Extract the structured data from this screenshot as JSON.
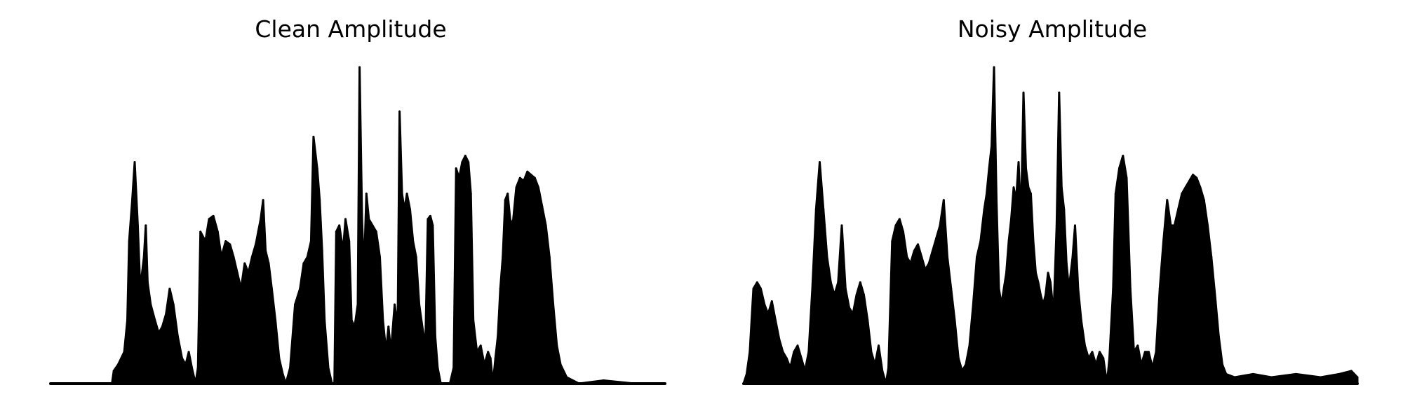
{
  "chart_data": [
    {
      "type": "area",
      "title": "Clean Amplitude",
      "xlabel": "",
      "ylabel": "",
      "axes_visible": false,
      "ylim": [
        0,
        1.0
      ],
      "color": "#000000",
      "points": [
        [
          0.0,
          0.0
        ],
        [
          0.1,
          0.0
        ],
        [
          0.103,
          0.04
        ],
        [
          0.11,
          0.06
        ],
        [
          0.12,
          0.1
        ],
        [
          0.125,
          0.2
        ],
        [
          0.128,
          0.45
        ],
        [
          0.133,
          0.58
        ],
        [
          0.137,
          0.7
        ],
        [
          0.142,
          0.5
        ],
        [
          0.146,
          0.3
        ],
        [
          0.152,
          0.4
        ],
        [
          0.155,
          0.5
        ],
        [
          0.158,
          0.32
        ],
        [
          0.163,
          0.25
        ],
        [
          0.17,
          0.2
        ],
        [
          0.176,
          0.16
        ],
        [
          0.182,
          0.18
        ],
        [
          0.188,
          0.22
        ],
        [
          0.194,
          0.3
        ],
        [
          0.2,
          0.25
        ],
        [
          0.207,
          0.15
        ],
        [
          0.214,
          0.08
        ],
        [
          0.22,
          0.06
        ],
        [
          0.225,
          0.1
        ],
        [
          0.23,
          0.05
        ],
        [
          0.236,
          0.0
        ],
        [
          0.24,
          0.05
        ],
        [
          0.244,
          0.48
        ],
        [
          0.252,
          0.45
        ],
        [
          0.258,
          0.52
        ],
        [
          0.265,
          0.53
        ],
        [
          0.272,
          0.48
        ],
        [
          0.278,
          0.4
        ],
        [
          0.285,
          0.45
        ],
        [
          0.292,
          0.44
        ],
        [
          0.298,
          0.4
        ],
        [
          0.304,
          0.35
        ],
        [
          0.31,
          0.3
        ],
        [
          0.316,
          0.38
        ],
        [
          0.322,
          0.35
        ],
        [
          0.328,
          0.4
        ],
        [
          0.334,
          0.44
        ],
        [
          0.338,
          0.48
        ],
        [
          0.342,
          0.52
        ],
        [
          0.346,
          0.58
        ],
        [
          0.35,
          0.42
        ],
        [
          0.355,
          0.38
        ],
        [
          0.36,
          0.3
        ],
        [
          0.366,
          0.2
        ],
        [
          0.372,
          0.08
        ],
        [
          0.378,
          0.03
        ],
        [
          0.383,
          0.0
        ],
        [
          0.39,
          0.05
        ],
        [
          0.398,
          0.25
        ],
        [
          0.406,
          0.3
        ],
        [
          0.412,
          0.38
        ],
        [
          0.418,
          0.4
        ],
        [
          0.424,
          0.45
        ],
        [
          0.428,
          0.78
        ],
        [
          0.434,
          0.68
        ],
        [
          0.438,
          0.58
        ],
        [
          0.442,
          0.42
        ],
        [
          0.446,
          0.2
        ],
        [
          0.452,
          0.05
        ],
        [
          0.458,
          0.0
        ],
        [
          0.462,
          0.0
        ],
        [
          0.465,
          0.48
        ],
        [
          0.47,
          0.5
        ],
        [
          0.476,
          0.42
        ],
        [
          0.48,
          0.52
        ],
        [
          0.486,
          0.45
        ],
        [
          0.49,
          0.2
        ],
        [
          0.495,
          0.18
        ],
        [
          0.5,
          0.25
        ],
        [
          0.503,
          1.0
        ],
        [
          0.507,
          0.52
        ],
        [
          0.51,
          0.35
        ],
        [
          0.514,
          0.6
        ],
        [
          0.518,
          0.52
        ],
        [
          0.524,
          0.5
        ],
        [
          0.53,
          0.48
        ],
        [
          0.536,
          0.4
        ],
        [
          0.541,
          0.2
        ],
        [
          0.546,
          0.1
        ],
        [
          0.55,
          0.18
        ],
        [
          0.554,
          0.1
        ],
        [
          0.56,
          0.25
        ],
        [
          0.565,
          0.18
        ],
        [
          0.568,
          0.86
        ],
        [
          0.572,
          0.6
        ],
        [
          0.576,
          0.55
        ],
        [
          0.58,
          0.6
        ],
        [
          0.585,
          0.55
        ],
        [
          0.59,
          0.45
        ],
        [
          0.595,
          0.4
        ],
        [
          0.6,
          0.25
        ],
        [
          0.605,
          0.18
        ],
        [
          0.61,
          0.12
        ],
        [
          0.614,
          0.52
        ],
        [
          0.618,
          0.53
        ],
        [
          0.622,
          0.5
        ],
        [
          0.626,
          0.15
        ],
        [
          0.63,
          0.05
        ],
        [
          0.635,
          0.0
        ],
        [
          0.65,
          0.0
        ],
        [
          0.656,
          0.05
        ],
        [
          0.66,
          0.68
        ],
        [
          0.665,
          0.65
        ],
        [
          0.67,
          0.7
        ],
        [
          0.675,
          0.72
        ],
        [
          0.68,
          0.7
        ],
        [
          0.684,
          0.6
        ],
        [
          0.688,
          0.2
        ],
        [
          0.694,
          0.1
        ],
        [
          0.7,
          0.12
        ],
        [
          0.706,
          0.06
        ],
        [
          0.712,
          0.1
        ],
        [
          0.716,
          0.08
        ],
        [
          0.72,
          0.0
        ],
        [
          0.724,
          0.08
        ],
        [
          0.728,
          0.15
        ],
        [
          0.732,
          0.3
        ],
        [
          0.736,
          0.4
        ],
        [
          0.74,
          0.58
        ],
        [
          0.744,
          0.6
        ],
        [
          0.748,
          0.52
        ],
        [
          0.752,
          0.5
        ],
        [
          0.758,
          0.62
        ],
        [
          0.764,
          0.65
        ],
        [
          0.77,
          0.64
        ],
        [
          0.776,
          0.67
        ],
        [
          0.782,
          0.66
        ],
        [
          0.788,
          0.65
        ],
        [
          0.794,
          0.62
        ],
        [
          0.8,
          0.56
        ],
        [
          0.806,
          0.5
        ],
        [
          0.812,
          0.4
        ],
        [
          0.818,
          0.25
        ],
        [
          0.824,
          0.12
        ],
        [
          0.83,
          0.06
        ],
        [
          0.84,
          0.02
        ],
        [
          0.86,
          0.0
        ],
        [
          0.9,
          0.01
        ],
        [
          0.95,
          0.0
        ],
        [
          1.0,
          0.0
        ]
      ]
    },
    {
      "type": "area",
      "title": "Noisy Amplitude",
      "xlabel": "",
      "ylabel": "",
      "axes_visible": false,
      "ylim": [
        0,
        1.0
      ],
      "color": "#000000",
      "points": [
        [
          0.0,
          0.0
        ],
        [
          0.005,
          0.03
        ],
        [
          0.01,
          0.1
        ],
        [
          0.016,
          0.3
        ],
        [
          0.022,
          0.32
        ],
        [
          0.028,
          0.3
        ],
        [
          0.034,
          0.25
        ],
        [
          0.04,
          0.22
        ],
        [
          0.046,
          0.26
        ],
        [
          0.052,
          0.2
        ],
        [
          0.058,
          0.14
        ],
        [
          0.064,
          0.1
        ],
        [
          0.07,
          0.08
        ],
        [
          0.076,
          0.05
        ],
        [
          0.082,
          0.1
        ],
        [
          0.088,
          0.12
        ],
        [
          0.094,
          0.08
        ],
        [
          0.1,
          0.04
        ],
        [
          0.106,
          0.1
        ],
        [
          0.112,
          0.3
        ],
        [
          0.118,
          0.55
        ],
        [
          0.124,
          0.7
        ],
        [
          0.13,
          0.55
        ],
        [
          0.136,
          0.4
        ],
        [
          0.142,
          0.32
        ],
        [
          0.148,
          0.28
        ],
        [
          0.154,
          0.32
        ],
        [
          0.16,
          0.5
        ],
        [
          0.166,
          0.3
        ],
        [
          0.172,
          0.24
        ],
        [
          0.178,
          0.22
        ],
        [
          0.184,
          0.28
        ],
        [
          0.19,
          0.32
        ],
        [
          0.196,
          0.28
        ],
        [
          0.202,
          0.2
        ],
        [
          0.208,
          0.1
        ],
        [
          0.214,
          0.06
        ],
        [
          0.22,
          0.12
        ],
        [
          0.226,
          0.04
        ],
        [
          0.232,
          0.0
        ],
        [
          0.236,
          0.05
        ],
        [
          0.242,
          0.45
        ],
        [
          0.248,
          0.5
        ],
        [
          0.254,
          0.52
        ],
        [
          0.26,
          0.48
        ],
        [
          0.266,
          0.4
        ],
        [
          0.272,
          0.38
        ],
        [
          0.278,
          0.42
        ],
        [
          0.284,
          0.44
        ],
        [
          0.29,
          0.4
        ],
        [
          0.296,
          0.36
        ],
        [
          0.302,
          0.38
        ],
        [
          0.308,
          0.42
        ],
        [
          0.314,
          0.46
        ],
        [
          0.32,
          0.5
        ],
        [
          0.326,
          0.58
        ],
        [
          0.332,
          0.4
        ],
        [
          0.338,
          0.3
        ],
        [
          0.344,
          0.2
        ],
        [
          0.35,
          0.08
        ],
        [
          0.356,
          0.04
        ],
        [
          0.362,
          0.06
        ],
        [
          0.368,
          0.12
        ],
        [
          0.374,
          0.25
        ],
        [
          0.38,
          0.4
        ],
        [
          0.386,
          0.45
        ],
        [
          0.392,
          0.55
        ],
        [
          0.396,
          0.6
        ],
        [
          0.4,
          0.68
        ],
        [
          0.404,
          0.75
        ],
        [
          0.408,
          1.0
        ],
        [
          0.412,
          0.58
        ],
        [
          0.416,
          0.3
        ],
        [
          0.42,
          0.25
        ],
        [
          0.424,
          0.3
        ],
        [
          0.428,
          0.35
        ],
        [
          0.432,
          0.45
        ],
        [
          0.436,
          0.52
        ],
        [
          0.44,
          0.62
        ],
        [
          0.444,
          0.58
        ],
        [
          0.448,
          0.7
        ],
        [
          0.452,
          0.52
        ],
        [
          0.456,
          0.92
        ],
        [
          0.46,
          0.68
        ],
        [
          0.464,
          0.62
        ],
        [
          0.468,
          0.6
        ],
        [
          0.472,
          0.45
        ],
        [
          0.476,
          0.35
        ],
        [
          0.48,
          0.32
        ],
        [
          0.484,
          0.28
        ],
        [
          0.488,
          0.25
        ],
        [
          0.492,
          0.28
        ],
        [
          0.496,
          0.35
        ],
        [
          0.5,
          0.32
        ],
        [
          0.505,
          0.22
        ],
        [
          0.51,
          0.5
        ],
        [
          0.514,
          0.92
        ],
        [
          0.518,
          0.62
        ],
        [
          0.522,
          0.55
        ],
        [
          0.526,
          0.38
        ],
        [
          0.53,
          0.3
        ],
        [
          0.536,
          0.4
        ],
        [
          0.54,
          0.5
        ],
        [
          0.545,
          0.3
        ],
        [
          0.55,
          0.2
        ],
        [
          0.556,
          0.12
        ],
        [
          0.562,
          0.08
        ],
        [
          0.568,
          0.1
        ],
        [
          0.574,
          0.06
        ],
        [
          0.58,
          0.1
        ],
        [
          0.586,
          0.08
        ],
        [
          0.592,
          0.0
        ],
        [
          0.596,
          0.08
        ],
        [
          0.602,
          0.3
        ],
        [
          0.606,
          0.6
        ],
        [
          0.612,
          0.68
        ],
        [
          0.618,
          0.72
        ],
        [
          0.624,
          0.65
        ],
        [
          0.63,
          0.3
        ],
        [
          0.636,
          0.1
        ],
        [
          0.642,
          0.12
        ],
        [
          0.648,
          0.06
        ],
        [
          0.654,
          0.1
        ],
        [
          0.66,
          0.1
        ],
        [
          0.666,
          0.05
        ],
        [
          0.672,
          0.1
        ],
        [
          0.678,
          0.3
        ],
        [
          0.684,
          0.45
        ],
        [
          0.69,
          0.58
        ],
        [
          0.696,
          0.5
        ],
        [
          0.702,
          0.5
        ],
        [
          0.708,
          0.55
        ],
        [
          0.714,
          0.6
        ],
        [
          0.72,
          0.62
        ],
        [
          0.726,
          0.64
        ],
        [
          0.732,
          0.66
        ],
        [
          0.738,
          0.65
        ],
        [
          0.744,
          0.62
        ],
        [
          0.75,
          0.58
        ],
        [
          0.756,
          0.5
        ],
        [
          0.762,
          0.4
        ],
        [
          0.768,
          0.28
        ],
        [
          0.774,
          0.15
        ],
        [
          0.78,
          0.06
        ],
        [
          0.786,
          0.03
        ],
        [
          0.8,
          0.02
        ],
        [
          0.83,
          0.03
        ],
        [
          0.86,
          0.02
        ],
        [
          0.9,
          0.03
        ],
        [
          0.94,
          0.02
        ],
        [
          0.97,
          0.03
        ],
        [
          0.99,
          0.04
        ],
        [
          1.0,
          0.02
        ]
      ]
    }
  ]
}
